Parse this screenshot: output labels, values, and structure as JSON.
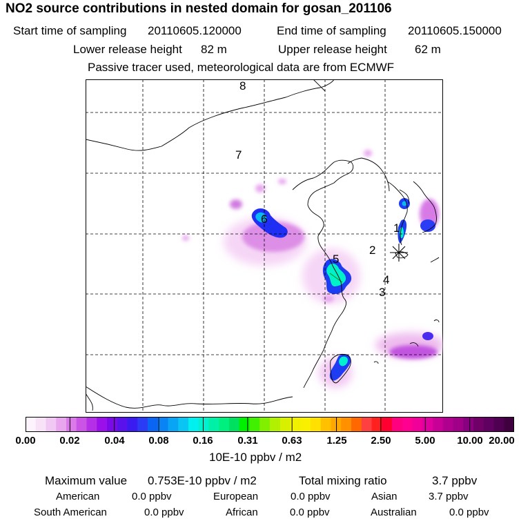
{
  "title": "NO2 source contributions in nested domain for gosan_201106",
  "header": {
    "start_label": "Start time of sampling",
    "start_value": "20110605.120000",
    "end_label": "End time of sampling",
    "end_value": "20110605.150000",
    "lower_label": "Lower release height",
    "lower_value": "82 m",
    "upper_label": "Upper release height",
    "upper_value": "62 m",
    "note": "Passive tracer used, meteorological data are from ECMWF"
  },
  "map": {
    "region_labels": [
      "1",
      "2",
      "3",
      "4",
      "5",
      "6",
      "7",
      "8"
    ],
    "marker": "receptor-asterisk"
  },
  "colorbar": {
    "ticks": [
      "0.00",
      "0.02",
      "0.04",
      "0.08",
      "0.16",
      "0.31",
      "0.63",
      "1.25",
      "2.50",
      "5.00",
      "10.00",
      "20.00"
    ],
    "units": "10E-10 ppbv / m2",
    "colors": [
      "#fdf3fd",
      "#f8e2f8",
      "#f1c7f3",
      "#e8a6ee",
      "#d97ae8",
      "#c954e6",
      "#b42fe6",
      "#9b10e8",
      "#7a0be8",
      "#5a12ec",
      "#3b1cf0",
      "#2a3cf4",
      "#0a64f4",
      "#0a84f4",
      "#0aa4f4",
      "#0ac4f4",
      "#00f0f0",
      "#00f0d0",
      "#00f0a8",
      "#00f080",
      "#00e060",
      "#00f000",
      "#40f000",
      "#80f000",
      "#b0f000",
      "#d8f000",
      "#f0f000",
      "#f8f000",
      "#ffe000",
      "#ffc000",
      "#ffa800",
      "#ff9000",
      "#ff6800",
      "#ff4040",
      "#ff2020",
      "#ff0030",
      "#ff0080",
      "#ff0090",
      "#f00098",
      "#e000a0",
      "#c80098",
      "#b00090",
      "#a00088",
      "#880080",
      "#700068",
      "#600060",
      "#500050",
      "#400040"
    ]
  },
  "stats": {
    "max_label": "Maximum value",
    "max_value": "0.753E-10 ppbv / m2",
    "total_label": "Total mixing ratio",
    "total_value": "3.7 ppbv"
  },
  "regions": [
    {
      "name": "American",
      "value": "0.0 ppbv"
    },
    {
      "name": "European",
      "value": "0.0 ppbv"
    },
    {
      "name": "Asian",
      "value": "3.7 ppbv"
    },
    {
      "name": "South American",
      "value": "0.0 ppbv"
    },
    {
      "name": "African",
      "value": "0.0 ppbv"
    },
    {
      "name": "Australian",
      "value": "0.0 ppbv"
    }
  ]
}
